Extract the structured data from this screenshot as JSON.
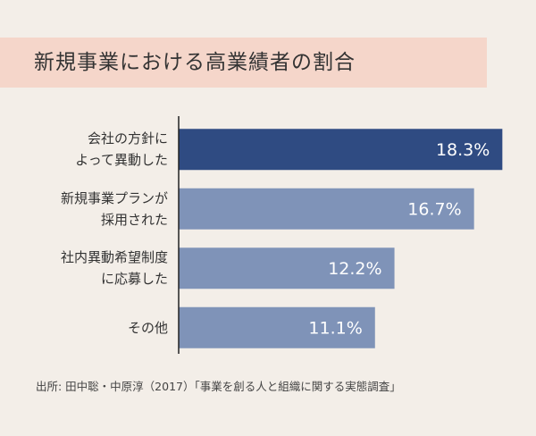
{
  "chart_data": {
    "type": "bar",
    "orientation": "horizontal",
    "title": "新規事業における高業績者の割合",
    "categories": [
      "会社の方針に\nよって異動した",
      "新規事業プランが\n採用された",
      "社内異動希望制度\nに応募した",
      "その他"
    ],
    "values": [
      18.3,
      16.7,
      12.2,
      11.1
    ],
    "value_labels": [
      "18.3%",
      "16.7%",
      "12.2%",
      "11.1%"
    ],
    "colors": [
      "#2f4b82",
      "#7f93b8",
      "#7f93b8",
      "#7f93b8"
    ],
    "xlim": [
      0,
      20
    ],
    "source": "出所: 田中聡・中原淳（2017）「事業を創る人と組織に関する実態調査」"
  }
}
